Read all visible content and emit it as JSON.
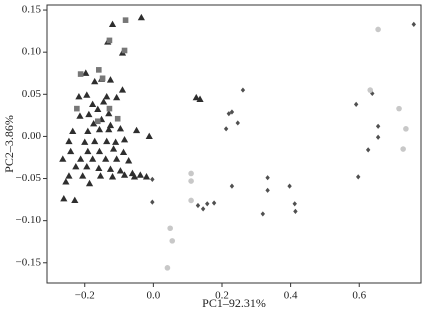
{
  "chart_data": {
    "type": "scatter",
    "xlabel": "PC1–92.31%",
    "ylabel": "PC2–3.86%",
    "xlim": [
      -0.31,
      0.78
    ],
    "ylim": [
      -0.174,
      0.156
    ],
    "xticks": [
      {
        "value": -0.2,
        "label": "−0.2"
      },
      {
        "value": 0,
        "label": "0.0"
      },
      0.2,
      0.4,
      0.6
    ],
    "yticks": [
      {
        "value": -0.15,
        "label": "−0.15"
      },
      {
        "value": -0.1,
        "label": "−0.10"
      },
      {
        "value": -0.05,
        "label": "−0.05"
      },
      {
        "value": 0,
        "label": "0.00"
      },
      {
        "value": 0.05,
        "label": "0.05"
      },
      {
        "value": 0.1,
        "label": "0.10"
      },
      {
        "value": 0.15,
        "label": "0.15"
      }
    ],
    "series": [
      {
        "marker": "triangle",
        "color": "#2e2e2e",
        "x": [
          -0.035,
          -0.119,
          -0.133,
          -0.09,
          -0.197,
          -0.151,
          -0.125,
          -0.171,
          -0.194,
          -0.136,
          -0.09,
          -0.217,
          -0.177,
          -0.145,
          -0.107,
          -0.162,
          -0.188,
          -0.13,
          -0.151,
          -0.174,
          -0.214,
          -0.125,
          -0.235,
          -0.191,
          -0.157,
          -0.13,
          -0.096,
          -0.049,
          -0.012,
          -0.246,
          -0.2,
          -0.171,
          -0.136,
          -0.11,
          -0.084,
          -0.241,
          -0.191,
          -0.157,
          -0.116,
          -0.087,
          -0.264,
          -0.212,
          -0.177,
          -0.139,
          -0.107,
          -0.072,
          -0.226,
          -0.194,
          -0.159,
          -0.125,
          -0.096,
          -0.061,
          -0.246,
          -0.206,
          -0.154,
          -0.119,
          -0.084,
          -0.055,
          -0.038,
          -0.02,
          -0.255,
          -0.186,
          -0.261,
          -0.229,
          0.125,
          0.136
        ],
        "y": [
          0.141,
          0.133,
          0.112,
          0.099,
          0.075,
          0.068,
          0.067,
          0.065,
          0.049,
          0.047,
          0.055,
          0.047,
          0.038,
          0.041,
          0.046,
          0.032,
          0.026,
          0.027,
          0.02,
          0.015,
          0.024,
          0.013,
          0.006,
          0.006,
          0.008,
          0.008,
          0.009,
          0.007,
          0.0,
          -0.006,
          -0.007,
          -0.006,
          -0.006,
          -0.007,
          -0.004,
          -0.018,
          -0.018,
          -0.018,
          -0.015,
          -0.019,
          -0.027,
          -0.027,
          -0.027,
          -0.027,
          -0.027,
          -0.029,
          -0.036,
          -0.036,
          -0.038,
          -0.039,
          -0.041,
          -0.044,
          -0.047,
          -0.047,
          -0.047,
          -0.048,
          -0.046,
          -0.048,
          -0.046,
          -0.048,
          -0.054,
          -0.056,
          -0.074,
          -0.076,
          0.046,
          0.044
        ]
      },
      {
        "marker": "square",
        "color": "#777777",
        "x": [
          -0.081,
          -0.128,
          -0.084,
          -0.159,
          -0.148,
          -0.212,
          -0.223,
          -0.104,
          -0.162,
          -0.128
        ],
        "y": [
          0.138,
          0.114,
          0.102,
          0.079,
          0.069,
          0.074,
          0.033,
          0.021,
          0.018,
          0.033
        ]
      },
      {
        "marker": "diamond",
        "color": "#505050",
        "x": [
          -0.003,
          -0.003,
          0.22,
          0.229,
          0.212,
          0.246,
          0.261,
          0.13,
          0.157,
          0.145,
          0.177,
          0.229,
          0.333,
          0.333,
          0.319,
          0.397,
          0.412,
          0.414,
          0.591,
          0.638,
          0.655,
          0.655,
          0.626,
          0.597,
          0.759
        ],
        "y": [
          -0.051,
          -0.078,
          0.027,
          0.029,
          0.009,
          0.016,
          0.055,
          -0.082,
          -0.08,
          -0.086,
          -0.079,
          -0.059,
          -0.049,
          -0.064,
          -0.092,
          -0.059,
          -0.08,
          -0.089,
          0.038,
          0.051,
          0.012,
          -0.001,
          -0.016,
          -0.048,
          0.133
        ]
      },
      {
        "marker": "circle",
        "color": "#c8c8c8",
        "x": [
          0.655,
          0.632,
          0.716,
          0.736,
          0.728,
          0.11,
          0.11,
          0.11,
          0.049,
          0.055,
          0.041
        ],
        "y": [
          0.127,
          0.055,
          0.033,
          0.009,
          -0.015,
          -0.044,
          -0.053,
          -0.076,
          -0.109,
          -0.124,
          -0.156
        ]
      }
    ]
  }
}
